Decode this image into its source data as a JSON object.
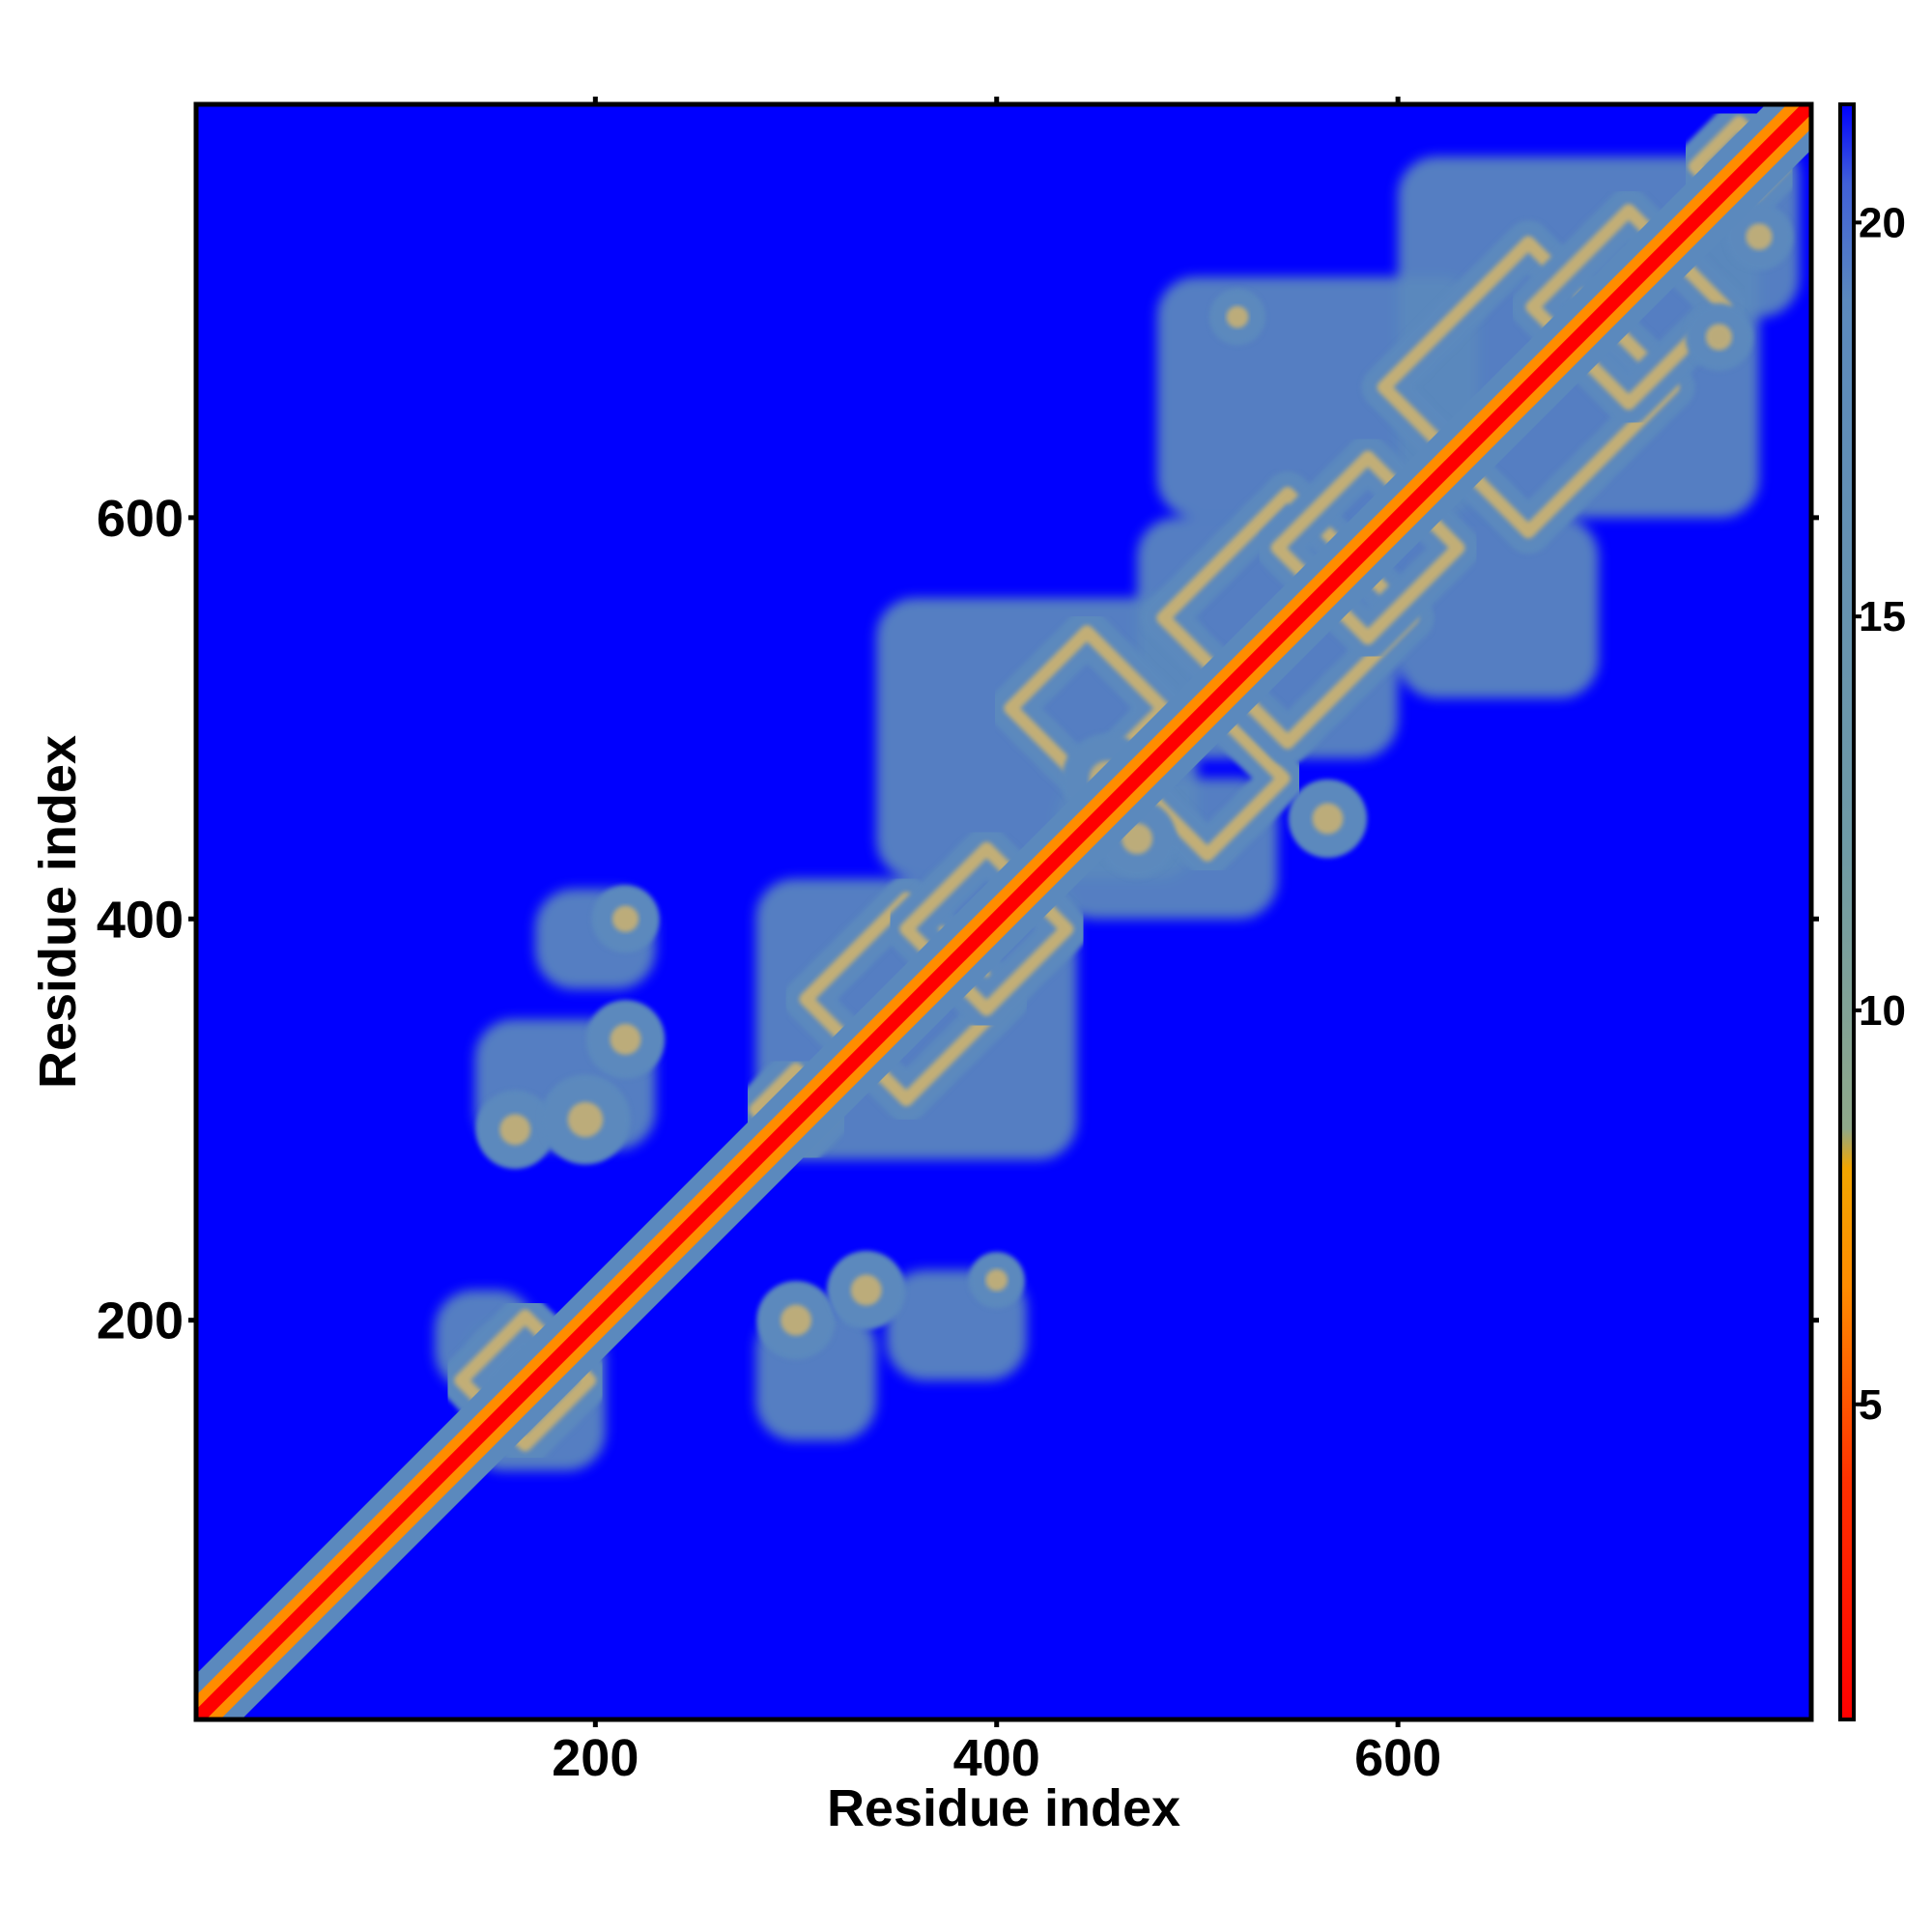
{
  "chart_data": {
    "type": "heatmap",
    "title": "",
    "xlabel": "Residue index",
    "ylabel": "Residue index",
    "xlim": [
      1,
      806
    ],
    "ylim": [
      1,
      806
    ],
    "x_ticks": [
      200,
      400,
      600
    ],
    "y_ticks": [
      200,
      400,
      600
    ],
    "grid": false,
    "legend": "colorbar-right",
    "colorbar": {
      "range": [
        1,
        21.5
      ],
      "ticks": [
        5,
        10,
        15,
        20
      ],
      "stops": [
        {
          "value": 1,
          "color": "#ff0000"
        },
        {
          "value": 4,
          "color": "#ff3000"
        },
        {
          "value": 6.5,
          "color": "#ff8c00"
        },
        {
          "value": 8,
          "color": "#f2a500"
        },
        {
          "value": 8.5,
          "color": "#8fa88a"
        },
        {
          "value": 12,
          "color": "#6f9aa5"
        },
        {
          "value": 19,
          "color": "#5b89bd"
        },
        {
          "value": 20.5,
          "color": "#4060d8"
        },
        {
          "value": 21.5,
          "color": "#0000ff"
        }
      ]
    },
    "background_value": 21.5,
    "background_color": "#0000ff",
    "diagonal_color": "#ff0000",
    "near_diagonal_color": "#ff8c00",
    "contact_color": "#5b89bd",
    "contact_edge_color": "#d4b56a",
    "diagonal_band_halfwidth": 10,
    "contact_regions": [
      {
        "x": [
          135,
          205
        ],
        "y": [
          125,
          200
        ]
      },
      {
        "x": [
          120,
          170
        ],
        "y": [
          165,
          215
        ]
      },
      {
        "x": [
          280,
          340
        ],
        "y": [
          140,
          205
        ]
      },
      {
        "x": [
          345,
          415
        ],
        "y": [
          170,
          225
        ]
      },
      {
        "x": [
          140,
          230
        ],
        "y": [
          285,
          350
        ]
      },
      {
        "x": [
          170,
          230
        ],
        "y": [
          365,
          415
        ]
      },
      {
        "x": [
          280,
          440
        ],
        "y": [
          280,
          420
        ]
      },
      {
        "x": [
          340,
          500
        ],
        "y": [
          420,
          560
        ]
      },
      {
        "x": [
          430,
          540
        ],
        "y": [
          400,
          470
        ]
      },
      {
        "x": [
          470,
          600
        ],
        "y": [
          480,
          600
        ]
      },
      {
        "x": [
          600,
          780
        ],
        "y": [
          600,
          780
        ]
      },
      {
        "x": [
          480,
          640
        ],
        "y": [
          600,
          720
        ]
      },
      {
        "x": [
          600,
          700
        ],
        "y": [
          510,
          600
        ]
      },
      {
        "x": [
          750,
          800
        ],
        "y": [
          700,
          790
        ]
      }
    ],
    "contact_rings": [
      {
        "cx": 165,
        "cy": 170,
        "r": 32
      },
      {
        "cx": 355,
        "cy": 360,
        "r": 50
      },
      {
        "cx": 395,
        "cy": 395,
        "r": 40
      },
      {
        "cx": 300,
        "cy": 305,
        "r": 20
      },
      {
        "cx": 505,
        "cy": 470,
        "r": 38
      },
      {
        "cx": 445,
        "cy": 505,
        "r": 38
      },
      {
        "cx": 545,
        "cy": 550,
        "r": 62
      },
      {
        "cx": 585,
        "cy": 585,
        "r": 45
      },
      {
        "cx": 665,
        "cy": 665,
        "r": 72
      },
      {
        "cx": 715,
        "cy": 705,
        "r": 48
      },
      {
        "cx": 770,
        "cy": 775,
        "r": 22
      }
    ],
    "contact_blobs": [
      {
        "cx": 300,
        "cy": 200,
        "r": 14
      },
      {
        "cx": 335,
        "cy": 215,
        "r": 14
      },
      {
        "cx": 400,
        "cy": 220,
        "r": 10
      },
      {
        "cx": 160,
        "cy": 295,
        "r": 14
      },
      {
        "cx": 195,
        "cy": 300,
        "r": 16
      },
      {
        "cx": 215,
        "cy": 340,
        "r": 14
      },
      {
        "cx": 215,
        "cy": 400,
        "r": 12
      },
      {
        "cx": 470,
        "cy": 440,
        "r": 14
      },
      {
        "cx": 455,
        "cy": 470,
        "r": 16
      },
      {
        "cx": 565,
        "cy": 450,
        "r": 14
      },
      {
        "cx": 520,
        "cy": 700,
        "r": 10
      },
      {
        "cx": 760,
        "cy": 690,
        "r": 12
      },
      {
        "cx": 780,
        "cy": 740,
        "r": 12
      }
    ]
  }
}
